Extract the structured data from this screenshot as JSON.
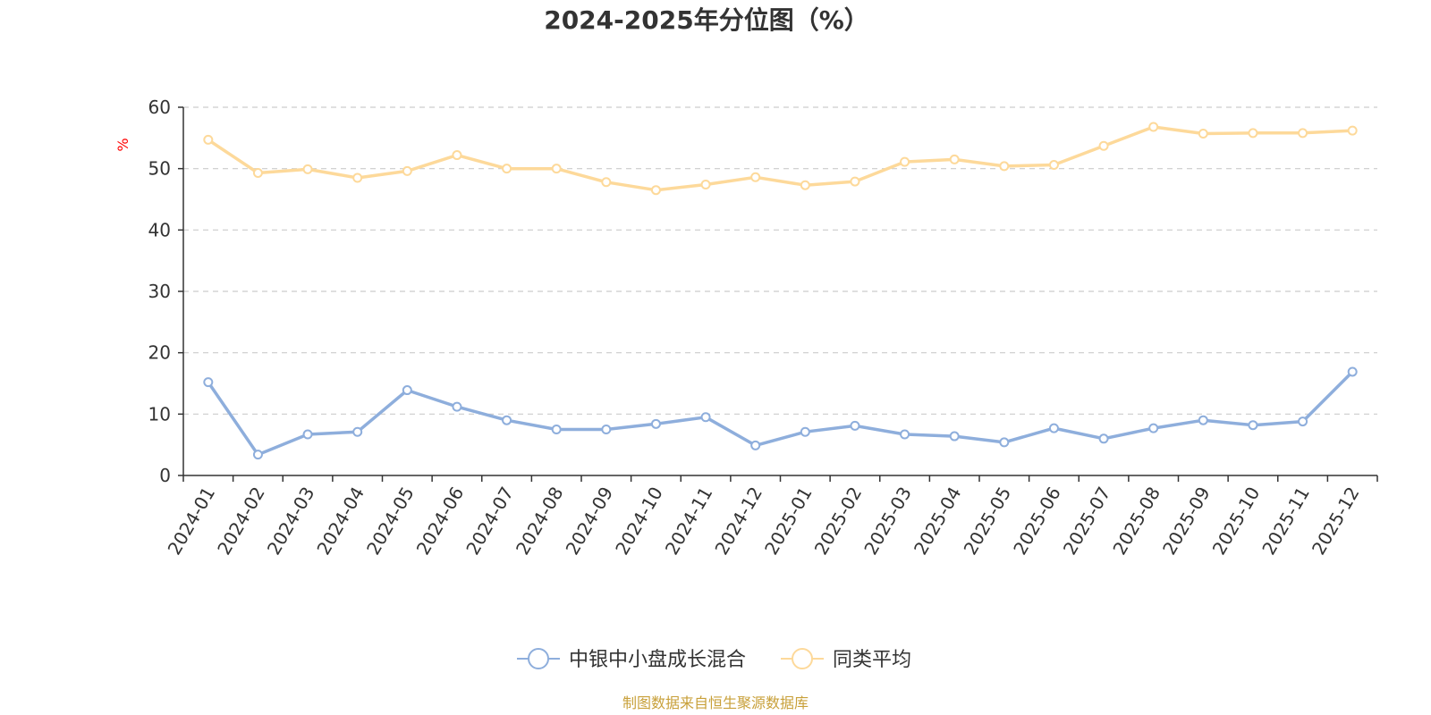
{
  "chart_data": {
    "type": "line",
    "title": "2024-2025年分位图（%）",
    "ylabel": "%",
    "ylim": [
      0,
      60
    ],
    "yticks": [
      0,
      10,
      20,
      30,
      40,
      50,
      60
    ],
    "grid": true,
    "legend_position": "bottom",
    "categories": [
      "2024-01",
      "2024-02",
      "2024-03",
      "2024-04",
      "2024-05",
      "2024-06",
      "2024-07",
      "2024-08",
      "2024-09",
      "2024-10",
      "2024-11",
      "2024-12",
      "2025-01",
      "2025-02",
      "2025-03",
      "2025-04",
      "2025-05",
      "2025-06",
      "2025-07",
      "2025-08",
      "2025-09",
      "2025-10",
      "2025-11",
      "2025-12"
    ],
    "series": [
      {
        "name": "中银中小盘成长混合",
        "color": "#8eaedc",
        "values": [
          15.2,
          3.4,
          6.7,
          7.1,
          13.9,
          11.2,
          9.0,
          7.5,
          7.5,
          8.4,
          9.5,
          4.9,
          7.1,
          8.1,
          6.7,
          6.4,
          5.4,
          7.7,
          6.0,
          7.7,
          9.0,
          8.2,
          8.8,
          16.9
        ]
      },
      {
        "name": "同类平均",
        "color": "#fdd99a",
        "values": [
          54.7,
          49.3,
          49.9,
          48.5,
          49.6,
          52.2,
          50.0,
          50.0,
          47.8,
          46.5,
          47.4,
          48.6,
          47.3,
          47.9,
          51.1,
          51.5,
          50.4,
          50.6,
          53.7,
          56.8,
          55.7,
          55.8,
          55.8,
          56.2
        ]
      }
    ],
    "unit_color": "#ff0000"
  },
  "source_text": "制图数据来自恒生聚源数据库",
  "source_color": "#c8a03a"
}
